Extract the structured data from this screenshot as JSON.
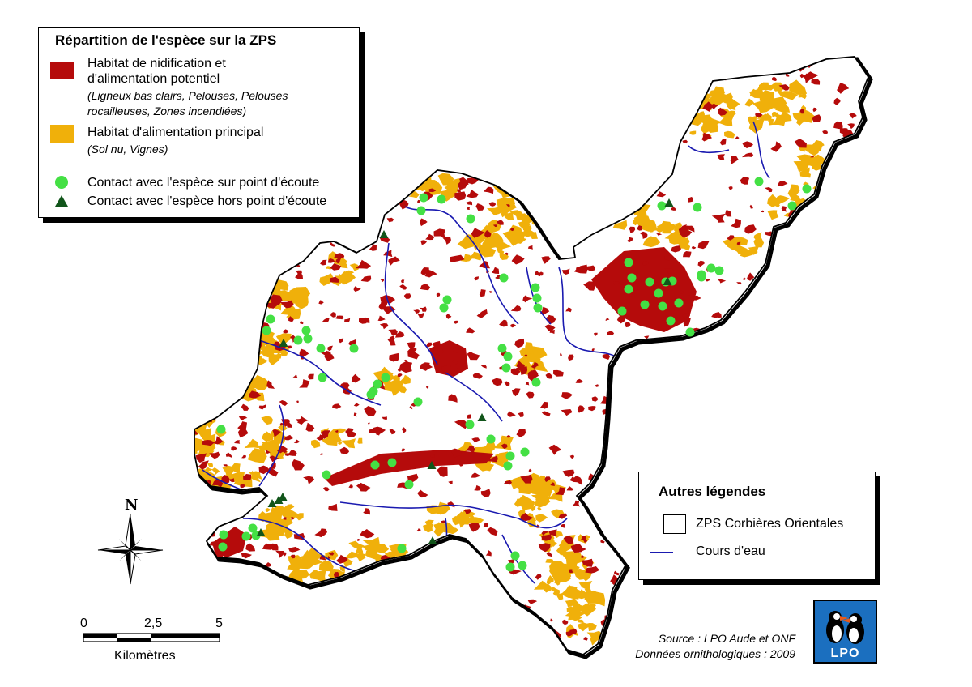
{
  "main_legend": {
    "title": "Répartition de l'espèce sur la ZPS",
    "items": [
      {
        "label_line1": "Habitat de nidification et",
        "label_line2": "d'alimentation potentiel",
        "detail_line1": "(Ligneux bas clairs, Pelouses, Pelouses",
        "detail_line2": "rocailleuses, Zones incendiées)",
        "color": "#b50b0b"
      },
      {
        "label_line1": "Habitat d'alimentation principal",
        "detail_line1": "(Sol nu, Vignes)",
        "color": "#f0b00a"
      },
      {
        "label_line1": "Contact avec l'espèce sur point d'écoute",
        "color": "#44e044"
      },
      {
        "label_line1": "Contact avec l'espèce hors point d'écoute",
        "color": "#11551a"
      }
    ]
  },
  "other_legend": {
    "title": "Autres légendes",
    "items": [
      {
        "label": "ZPS Corbières Orientales"
      },
      {
        "label": "Cours d'eau",
        "color": "#1a1ab0"
      }
    ]
  },
  "north_arrow": {
    "label": "N"
  },
  "scale_bar": {
    "ticks": [
      "0",
      "2,5",
      "5"
    ],
    "unit": "Kilomètres"
  },
  "source": {
    "line1": "Source : LPO Aude et ONF",
    "line2": "Données ornithologiques : 2009"
  },
  "logo": {
    "text": "LPO"
  }
}
